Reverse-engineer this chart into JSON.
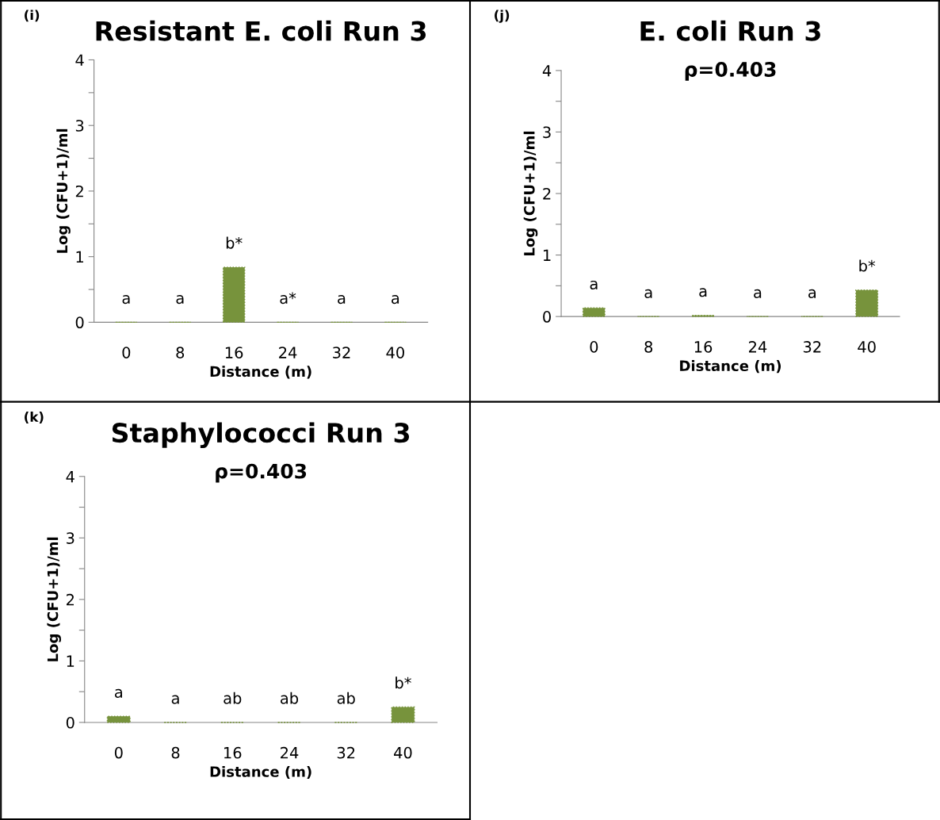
{
  "chart_data": [
    {
      "type": "bar",
      "title": "Resistant E. coli Run 3",
      "xlabel": "Distance (m)",
      "ylabel": "Log (CFU+1)/ml",
      "categories": [
        "0",
        "8",
        "16",
        "24",
        "32",
        "40"
      ],
      "values": [
        0,
        0,
        0.84,
        0,
        0,
        0
      ],
      "color": "#77933c",
      "ylim": [
        0,
        4
      ],
      "yticks": [
        0,
        {
          "value": 0.5,
          "label": null
        },
        1,
        {
          "value": 1.5,
          "label": null
        },
        2,
        {
          "value": 2.5,
          "label": null
        },
        3,
        {
          "value": 3.5,
          "label": null
        },
        4
      ],
      "grid": false,
      "annotations": [
        "(i)",
        {
          "text": "a",
          "x": "0",
          "y": 0
        },
        {
          "text": "a",
          "x": "8",
          "y": 0
        },
        {
          "text": "b*",
          "x": "16",
          "y": 0.84
        },
        {
          "text": "a*",
          "x": "24",
          "y": 0
        },
        {
          "text": "a",
          "x": "32",
          "y": 0
        },
        {
          "text": "a",
          "x": "40",
          "y": 0
        }
      ]
    },
    {
      "type": "bar",
      "title": "E. coli Run 3",
      "subtitle": "ρ=0.403",
      "xlabel": "Distance (m)",
      "ylabel": "Log (CFU+1)/ml",
      "categories": [
        "0",
        "8",
        "16",
        "24",
        "32",
        "40"
      ],
      "values": [
        0.14,
        0,
        0.02,
        0,
        0,
        0.43
      ],
      "color": "#77933c",
      "ylim": [
        0,
        4
      ],
      "yticks": [
        0,
        {
          "value": 0.5,
          "label": null
        },
        1,
        {
          "value": 1.5,
          "label": null
        },
        2,
        {
          "value": 2.5,
          "label": null
        },
        3,
        {
          "value": 3.5,
          "label": null
        },
        4
      ],
      "grid": false,
      "annotations": [
        "(j)",
        {
          "text": "a",
          "x": "0",
          "y": 0.14
        },
        {
          "text": "a",
          "x": "8",
          "y": 0
        },
        {
          "text": "a",
          "x": "16",
          "y": 0.02
        },
        {
          "text": "a",
          "x": "24",
          "y": 0
        },
        {
          "text": "a",
          "x": "32",
          "y": 0
        },
        {
          "text": "b*",
          "x": "40",
          "y": 0.43
        }
      ]
    },
    {
      "type": "bar",
      "title": "Staphylococci Run 3",
      "subtitle": "ρ=0.403",
      "xlabel": "Distance (m)",
      "ylabel": "Log (CFU+1)/ml",
      "categories": [
        "0",
        "8",
        "16",
        "24",
        "32",
        "40"
      ],
      "values": [
        0.1,
        0,
        0,
        0,
        0,
        0.25
      ],
      "color": "#77933c",
      "ylim": [
        0,
        4
      ],
      "yticks": [
        0,
        {
          "value": 0.5,
          "label": null
        },
        1,
        {
          "value": 1.5,
          "label": null
        },
        2,
        {
          "value": 2.5,
          "label": null
        },
        3,
        {
          "value": 3.5,
          "label": null
        },
        4
      ],
      "grid": false,
      "annotations": [
        "(k)",
        {
          "text": "a",
          "x": "0",
          "y": 0.1
        },
        {
          "text": "a",
          "x": "8",
          "y": 0
        },
        {
          "text": "ab",
          "x": "16",
          "y": 0
        },
        {
          "text": "ab",
          "x": "24",
          "y": 0
        },
        {
          "text": "ab",
          "x": "32",
          "y": 0
        },
        {
          "text": "b*",
          "x": "40",
          "y": 0.25
        }
      ]
    }
  ]
}
